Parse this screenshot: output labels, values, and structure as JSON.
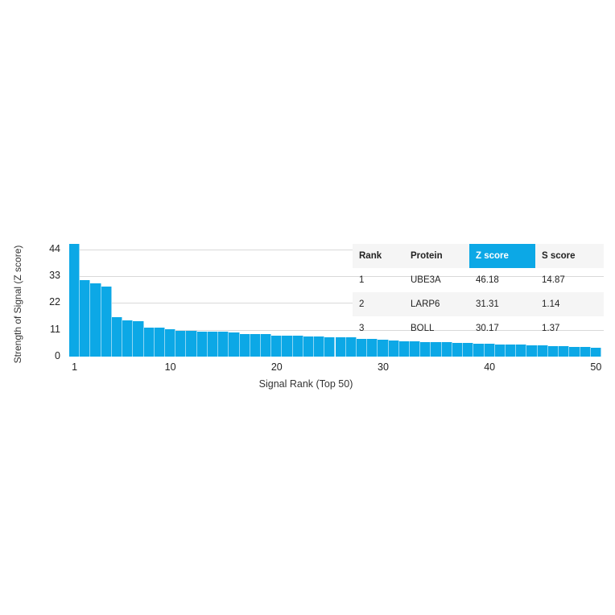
{
  "chart_data": {
    "type": "bar",
    "title": "",
    "xlabel": "Signal Rank (Top 50)",
    "ylabel": "Strength of Signal (Z score)",
    "ylim": [
      0,
      46.18
    ],
    "yticks": [
      0,
      11,
      22,
      33,
      44
    ],
    "xticks": [
      1,
      10,
      20,
      30,
      40,
      50
    ],
    "grid": true,
    "colors": {
      "bar": "#0ca8e6",
      "highlight_header": "#0ca8e6"
    },
    "categories": [
      1,
      2,
      3,
      4,
      5,
      6,
      7,
      8,
      9,
      10,
      11,
      12,
      13,
      14,
      15,
      16,
      17,
      18,
      19,
      20,
      21,
      22,
      23,
      24,
      25,
      26,
      27,
      28,
      29,
      30,
      31,
      32,
      33,
      34,
      35,
      36,
      37,
      38,
      39,
      40,
      41,
      42,
      43,
      44,
      45,
      46,
      47,
      48,
      49,
      50
    ],
    "values": [
      46.18,
      31.31,
      30.17,
      28.6,
      16.2,
      15.0,
      14.4,
      11.9,
      11.8,
      11.2,
      10.6,
      10.4,
      10.3,
      10.2,
      10.2,
      10.0,
      9.4,
      9.2,
      9.1,
      8.7,
      8.6,
      8.5,
      8.3,
      8.1,
      8.0,
      7.9,
      7.8,
      7.3,
      7.1,
      6.9,
      6.6,
      6.4,
      6.2,
      6.1,
      5.9,
      5.8,
      5.6,
      5.5,
      5.4,
      5.3,
      5.1,
      5.0,
      4.9,
      4.7,
      4.5,
      4.4,
      4.2,
      4.0,
      3.8,
      3.6
    ]
  },
  "table": {
    "headers": [
      "Rank",
      "Protein",
      "Z score",
      "S score"
    ],
    "highlighted_header_index": 2,
    "rows": [
      [
        "1",
        "UBE3A",
        "46.18",
        "14.87"
      ],
      [
        "2",
        "LARP6",
        "31.31",
        "1.14"
      ],
      [
        "3",
        "BOLL",
        "30.17",
        "1.37"
      ]
    ]
  }
}
